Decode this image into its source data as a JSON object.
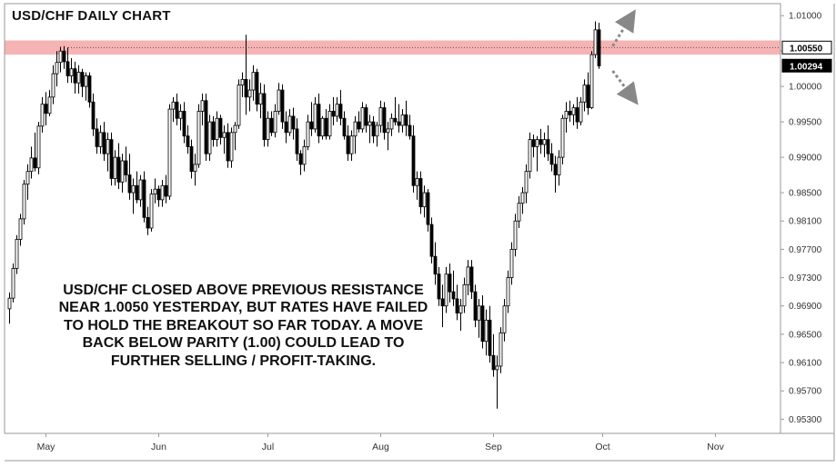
{
  "chart_data": {
    "type": "candlestick",
    "title": "USD/CHF DAILY CHART",
    "annotation_lines": [
      "USD/CHF CLOSED ABOVE PREVIOUS RESISTANCE",
      "NEAR 1.0050 YESTERDAY, BUT RATES HAVE FAILED",
      "TO HOLD THE BREAKOUT SO FAR TODAY. A MOVE",
      "BACK BELOW PARITY (1.00) COULD LEAD TO",
      "FURTHER SELLING / PROFIT-TAKING."
    ],
    "ylim": [
      0.951,
      1.0117
    ],
    "y_ticks": [
      1.01,
      1.005,
      1.0,
      0.995,
      0.99,
      0.985,
      0.981,
      0.977,
      0.973,
      0.969,
      0.965,
      0.961,
      0.957,
      0.953
    ],
    "y_tick_labels": [
      "1.01000",
      "",
      "1.00000",
      "0.99500",
      "0.99000",
      "0.98500",
      "0.98100",
      "0.97700",
      "0.97300",
      "0.96900",
      "0.96500",
      "0.96100",
      "0.95700",
      "0.95300"
    ],
    "x_labels": [
      {
        "label": "May",
        "index": 10
      },
      {
        "label": "Jun",
        "index": 41
      },
      {
        "label": "Jul",
        "index": 71
      },
      {
        "label": "Aug",
        "index": 102
      },
      {
        "label": "Sep",
        "index": 133
      },
      {
        "label": "Oct",
        "index": 163
      },
      {
        "label": "Nov",
        "index": 194
      }
    ],
    "resistance": {
      "low": 1.0045,
      "high": 1.0065,
      "level": 1.0055
    },
    "price_labels": [
      {
        "value": 1.0055,
        "text": "1.00550",
        "style": "white"
      },
      {
        "value": 1.00294,
        "text": "1.00294",
        "style": "black"
      }
    ],
    "candle_colors": {
      "up": "#ffffff",
      "down": "#000000",
      "outline": "#000000"
    },
    "band_color": "#f4a6a6",
    "arrow_color": "#888888",
    "ohlc": [
      [
        0.9686,
        0.9709,
        0.9665,
        0.9701
      ],
      [
        0.9701,
        0.975,
        0.9695,
        0.9743
      ],
      [
        0.9743,
        0.979,
        0.9735,
        0.9784
      ],
      [
        0.9784,
        0.982,
        0.9775,
        0.9813
      ],
      [
        0.9813,
        0.9868,
        0.9805,
        0.9862
      ],
      [
        0.9862,
        0.989,
        0.984,
        0.988
      ],
      [
        0.988,
        0.9915,
        0.987,
        0.9899
      ],
      [
        0.9899,
        0.9935,
        0.988,
        0.9885
      ],
      [
        0.9885,
        0.995,
        0.9876,
        0.9944
      ],
      [
        0.9944,
        0.9985,
        0.9935,
        0.9975
      ],
      [
        0.9975,
        0.9992,
        0.9945,
        0.9962
      ],
      [
        0.9962,
        0.9995,
        0.9958,
        0.9985
      ],
      [
        0.9985,
        1.003,
        0.9975,
        1.0018
      ],
      [
        1.0018,
        1.005,
        1.0,
        1.0034
      ],
      [
        1.0034,
        1.0056,
        1.002,
        1.005
      ],
      [
        1.005,
        1.0057,
        1.0025,
        1.0035
      ],
      [
        1.0035,
        1.0055,
        1.0005,
        1.0015
      ],
      [
        1.0015,
        1.004,
        1.0005,
        1.0025
      ],
      [
        1.0025,
        1.0035,
        0.999,
        1.0005
      ],
      [
        1.0005,
        1.003,
        0.999,
        1.002
      ],
      [
        1.002,
        1.0025,
        0.9985,
        1.0
      ],
      [
        1.0,
        1.002,
        0.998,
        1.0015
      ],
      [
        1.0015,
        1.002,
        0.997,
        0.9978
      ],
      [
        0.9978,
        0.999,
        0.993,
        0.994
      ],
      [
        0.994,
        0.9955,
        0.9905,
        0.9915
      ],
      [
        0.9915,
        0.9945,
        0.9905,
        0.9935
      ],
      [
        0.9935,
        0.995,
        0.9895,
        0.9905
      ],
      [
        0.9905,
        0.9935,
        0.988,
        0.9925
      ],
      [
        0.9925,
        0.9935,
        0.986,
        0.987
      ],
      [
        0.987,
        0.991,
        0.986,
        0.99
      ],
      [
        0.99,
        0.992,
        0.9855,
        0.9865
      ],
      [
        0.9865,
        0.9905,
        0.985,
        0.9895
      ],
      [
        0.9895,
        0.9915,
        0.9865,
        0.9875
      ],
      [
        0.9875,
        0.9905,
        0.984,
        0.985
      ],
      [
        0.985,
        0.987,
        0.982,
        0.986
      ],
      [
        0.986,
        0.988,
        0.9835,
        0.984
      ],
      [
        0.984,
        0.9875,
        0.983,
        0.9868
      ],
      [
        0.9868,
        0.988,
        0.9808,
        0.9815
      ],
      [
        0.9815,
        0.983,
        0.979,
        0.98
      ],
      [
        0.98,
        0.9855,
        0.9795,
        0.9848
      ],
      [
        0.9848,
        0.987,
        0.9835,
        0.9855
      ],
      [
        0.9855,
        0.986,
        0.983,
        0.984
      ],
      [
        0.984,
        0.9868,
        0.983,
        0.986
      ],
      [
        0.986,
        0.9875,
        0.9835,
        0.9845
      ],
      [
        0.9845,
        0.9975,
        0.984,
        0.9968
      ],
      [
        0.9968,
        0.9985,
        0.995,
        0.9978
      ],
      [
        0.9978,
        0.999,
        0.9945,
        0.9955
      ],
      [
        0.9955,
        0.9975,
        0.9938,
        0.9965
      ],
      [
        0.9965,
        0.9978,
        0.992,
        0.993
      ],
      [
        0.993,
        0.9945,
        0.9905,
        0.9915
      ],
      [
        0.9915,
        0.9925,
        0.987,
        0.988
      ],
      [
        0.988,
        0.9905,
        0.986,
        0.989
      ],
      [
        0.989,
        0.9975,
        0.9885,
        0.9965
      ],
      [
        0.9965,
        0.999,
        0.9945,
        0.998
      ],
      [
        0.998,
        0.999,
        0.9895,
        0.9905
      ],
      [
        0.9905,
        0.996,
        0.9895,
        0.995
      ],
      [
        0.995,
        0.9958,
        0.9915,
        0.9925
      ],
      [
        0.9925,
        0.9965,
        0.9915,
        0.9955
      ],
      [
        0.9955,
        0.996,
        0.9918,
        0.9928
      ],
      [
        0.9928,
        0.9945,
        0.9905,
        0.9935
      ],
      [
        0.9935,
        0.9948,
        0.9885,
        0.9895
      ],
      [
        0.9895,
        0.9942,
        0.9885,
        0.9935
      ],
      [
        0.9935,
        0.995,
        0.991,
        0.9945
      ],
      [
        0.9945,
        1.001,
        0.994,
        1.0002
      ],
      [
        1.0002,
        1.002,
        0.9985,
        1.001
      ],
      [
        1.001,
        1.0073,
        0.996,
        0.9985
      ],
      [
        0.9985,
        1.001,
        0.9965,
        0.9995
      ],
      [
        0.9995,
        1.003,
        0.998,
        1.002
      ],
      [
        1.002,
        1.0025,
        0.9965,
        0.9975
      ],
      [
        0.9975,
        1.0005,
        0.9955,
        0.999
      ],
      [
        0.999,
        1.0003,
        0.9915,
        0.9925
      ],
      [
        0.9925,
        0.9965,
        0.9915,
        0.9955
      ],
      [
        0.9955,
        0.9965,
        0.993,
        0.9935
      ],
      [
        0.9935,
        0.9975,
        0.9928,
        0.9965
      ],
      [
        0.9965,
        1.0005,
        0.996,
        0.9995
      ],
      [
        0.9995,
        1.0003,
        0.994,
        0.995
      ],
      [
        0.995,
        0.9965,
        0.992,
        0.9935
      ],
      [
        0.9935,
        0.9968,
        0.993,
        0.9958
      ],
      [
        0.9958,
        0.997,
        0.9925,
        0.994
      ],
      [
        0.994,
        0.9955,
        0.9895,
        0.9905
      ],
      [
        0.9905,
        0.991,
        0.9875,
        0.989
      ],
      [
        0.989,
        0.9925,
        0.988,
        0.9915
      ],
      [
        0.9915,
        0.996,
        0.991,
        0.995
      ],
      [
        0.995,
        0.9978,
        0.993,
        0.994
      ],
      [
        0.994,
        0.9985,
        0.9935,
        0.9975
      ],
      [
        0.9975,
        0.999,
        0.992,
        0.993
      ],
      [
        0.993,
        0.9958,
        0.9925,
        0.9955
      ],
      [
        0.9955,
        0.9968,
        0.9925,
        0.993
      ],
      [
        0.993,
        0.9975,
        0.9925,
        0.9965
      ],
      [
        0.9965,
        0.9985,
        0.9945,
        0.9958
      ],
      [
        0.9958,
        0.9985,
        0.995,
        0.9975
      ],
      [
        0.9975,
        0.9995,
        0.9945,
        0.9955
      ],
      [
        0.9955,
        0.9965,
        0.9925,
        0.993
      ],
      [
        0.993,
        0.9945,
        0.9895,
        0.9905
      ],
      [
        0.9905,
        0.9938,
        0.9895,
        0.993
      ],
      [
        0.993,
        0.9958,
        0.9905,
        0.995
      ],
      [
        0.995,
        0.9965,
        0.9935,
        0.994
      ],
      [
        0.994,
        0.9978,
        0.9935,
        0.997
      ],
      [
        0.997,
        0.9975,
        0.9935,
        0.9945
      ],
      [
        0.9945,
        0.996,
        0.992,
        0.995
      ],
      [
        0.995,
        0.9958,
        0.992,
        0.993
      ],
      [
        0.993,
        0.995,
        0.9915,
        0.9945
      ],
      [
        0.9945,
        0.998,
        0.9935,
        0.997
      ],
      [
        0.997,
        0.9978,
        0.9925,
        0.9935
      ],
      [
        0.9935,
        0.995,
        0.991,
        0.994
      ],
      [
        0.994,
        0.9962,
        0.993,
        0.9955
      ],
      [
        0.9955,
        0.9985,
        0.9945,
        0.995
      ],
      [
        0.995,
        0.9975,
        0.9935,
        0.9945
      ],
      [
        0.9945,
        0.9968,
        0.9935,
        0.996
      ],
      [
        0.996,
        0.998,
        0.993,
        0.9945
      ],
      [
        0.9945,
        0.996,
        0.9925,
        0.993
      ],
      [
        0.993,
        0.9945,
        0.985,
        0.986
      ],
      [
        0.986,
        0.988,
        0.984,
        0.987
      ],
      [
        0.987,
        0.988,
        0.982,
        0.983
      ],
      [
        0.983,
        0.986,
        0.9815,
        0.985
      ],
      [
        0.985,
        0.9855,
        0.9795,
        0.9805
      ],
      [
        0.9805,
        0.9815,
        0.975,
        0.976
      ],
      [
        0.976,
        0.978,
        0.972,
        0.9735
      ],
      [
        0.9735,
        0.9745,
        0.969,
        0.97
      ],
      [
        0.97,
        0.972,
        0.966,
        0.969
      ],
      [
        0.969,
        0.9745,
        0.968,
        0.9735
      ],
      [
        0.9735,
        0.975,
        0.9695,
        0.971
      ],
      [
        0.971,
        0.974,
        0.969,
        0.97
      ],
      [
        0.97,
        0.972,
        0.967,
        0.968
      ],
      [
        0.968,
        0.97,
        0.9655,
        0.969
      ],
      [
        0.969,
        0.973,
        0.968,
        0.972
      ],
      [
        0.972,
        0.9755,
        0.9705,
        0.9745
      ],
      [
        0.9745,
        0.9755,
        0.97,
        0.971
      ],
      [
        0.971,
        0.972,
        0.966,
        0.967
      ],
      [
        0.967,
        0.97,
        0.9645,
        0.969
      ],
      [
        0.969,
        0.9705,
        0.963,
        0.964
      ],
      [
        0.964,
        0.9685,
        0.962,
        0.967
      ],
      [
        0.967,
        0.969,
        0.961,
        0.962
      ],
      [
        0.962,
        0.965,
        0.959,
        0.96
      ],
      [
        0.96,
        0.962,
        0.9545,
        0.9605
      ],
      [
        0.9605,
        0.966,
        0.9595,
        0.9652
      ],
      [
        0.9652,
        0.97,
        0.964,
        0.969
      ],
      [
        0.969,
        0.974,
        0.968,
        0.973
      ],
      [
        0.973,
        0.978,
        0.972,
        0.977
      ],
      [
        0.977,
        0.982,
        0.976,
        0.981
      ],
      [
        0.981,
        0.9845,
        0.98,
        0.9835
      ],
      [
        0.9835,
        0.9858,
        0.982,
        0.985
      ],
      [
        0.985,
        0.989,
        0.9835,
        0.988
      ],
      [
        0.988,
        0.9935,
        0.987,
        0.9925
      ],
      [
        0.9925,
        0.9932,
        0.99,
        0.9915
      ],
      [
        0.9915,
        0.993,
        0.988,
        0.9925
      ],
      [
        0.9925,
        0.994,
        0.9905,
        0.9918
      ],
      [
        0.9918,
        0.9935,
        0.99,
        0.9925
      ],
      [
        0.9925,
        0.9945,
        0.9895,
        0.9905
      ],
      [
        0.9905,
        0.992,
        0.988,
        0.989
      ],
      [
        0.989,
        0.9902,
        0.985,
        0.9875
      ],
      [
        0.9875,
        0.991,
        0.986,
        0.99
      ],
      [
        0.99,
        0.996,
        0.989,
        0.9955
      ],
      [
        0.9955,
        0.9978,
        0.9935,
        0.9965
      ],
      [
        0.9965,
        0.998,
        0.995,
        0.996
      ],
      [
        0.996,
        0.9975,
        0.9945,
        0.997
      ],
      [
        0.997,
        0.9985,
        0.994,
        0.995
      ],
      [
        0.995,
        0.9985,
        0.9945,
        0.9978
      ],
      [
        0.9978,
        1.001,
        0.9965,
        1.0002
      ],
      [
        1.0002,
        1.002,
        0.996,
        0.997
      ],
      [
        0.997,
        1.005,
        0.9968,
        1.0045
      ],
      [
        1.0045,
        1.0092,
        1.004,
        1.008
      ],
      [
        1.008,
        1.009,
        1.0025,
        1.0029
      ]
    ]
  }
}
